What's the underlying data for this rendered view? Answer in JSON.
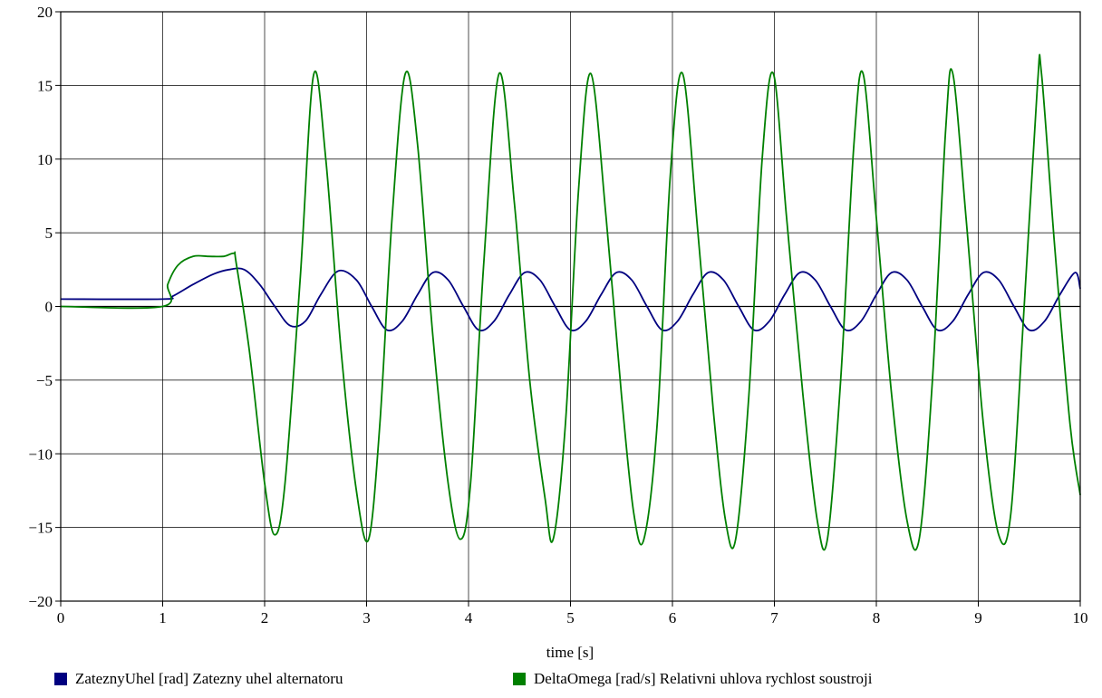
{
  "chart_data": {
    "type": "line",
    "title": "",
    "xlabel": "time [s]",
    "ylabel": "",
    "xlim": [
      0,
      10
    ],
    "ylim": [
      -20,
      20
    ],
    "xticks": [
      0,
      1,
      2,
      3,
      4,
      5,
      6,
      7,
      8,
      9,
      10
    ],
    "yticks": [
      -20,
      -15,
      -10,
      -5,
      0,
      5,
      10,
      15,
      20
    ],
    "ytick_labels": [
      "−20",
      "−15",
      "−10",
      "−5",
      "0",
      "5",
      "10",
      "15",
      "20"
    ],
    "grid": true,
    "legend_position": "bottom",
    "series": [
      {
        "name": "ZateznyUhel [rad] Zatezny uhel alternatoru",
        "color": "#000080",
        "x": [
          0,
          1.0,
          1.1,
          1.3,
          1.5,
          1.65,
          1.8,
          1.95,
          2.1,
          2.25,
          2.4,
          2.55,
          2.72,
          2.9,
          3.05,
          3.2,
          3.35,
          3.5,
          3.65,
          3.8,
          3.95,
          4.1,
          4.25,
          4.4,
          4.55,
          4.7,
          4.85,
          5.0,
          5.15,
          5.3,
          5.45,
          5.6,
          5.75,
          5.9,
          6.05,
          6.2,
          6.35,
          6.5,
          6.65,
          6.8,
          6.95,
          7.1,
          7.25,
          7.4,
          7.55,
          7.7,
          7.85,
          8.0,
          8.15,
          8.3,
          8.45,
          8.6,
          8.75,
          8.9,
          9.05,
          9.2,
          9.35,
          9.5,
          9.65,
          9.8,
          9.95,
          10.0
        ],
        "values": [
          0.5,
          0.5,
          0.7,
          1.5,
          2.2,
          2.5,
          2.5,
          1.5,
          0,
          -1.3,
          -1.0,
          0.8,
          2.4,
          1.8,
          0,
          -1.6,
          -1.0,
          0.8,
          2.3,
          1.8,
          0,
          -1.6,
          -1.0,
          0.8,
          2.3,
          1.8,
          0,
          -1.6,
          -1.0,
          0.8,
          2.3,
          1.8,
          0,
          -1.6,
          -1.0,
          0.8,
          2.3,
          1.8,
          0,
          -1.6,
          -1.0,
          0.8,
          2.3,
          1.8,
          0,
          -1.6,
          -1.0,
          0.8,
          2.3,
          1.8,
          0,
          -1.6,
          -1.0,
          0.8,
          2.3,
          1.8,
          0,
          -1.6,
          -1.0,
          0.8,
          2.3,
          1.2
        ]
      },
      {
        "name": "DeltaOmega [rad/s] Relativni uhlova rychlost soustroji",
        "color": "#008000",
        "x": [
          0,
          1.0,
          1.05,
          1.15,
          1.3,
          1.45,
          1.6,
          1.7,
          1.72,
          1.85,
          2.0,
          2.1,
          2.2,
          2.35,
          2.48,
          2.6,
          2.75,
          2.9,
          3.02,
          3.13,
          3.25,
          3.38,
          3.5,
          3.65,
          3.8,
          3.92,
          4.02,
          4.15,
          4.3,
          4.45,
          4.6,
          4.75,
          4.83,
          4.95,
          5.08,
          5.2,
          5.35,
          5.5,
          5.62,
          5.72,
          5.85,
          5.98,
          6.1,
          6.25,
          6.4,
          6.52,
          6.62,
          6.75,
          6.88,
          6.99,
          7.12,
          7.28,
          7.42,
          7.52,
          7.65,
          7.78,
          7.87,
          8.0,
          8.15,
          8.3,
          8.42,
          8.55,
          8.68,
          8.75,
          8.88,
          9.05,
          9.2,
          9.32,
          9.45,
          9.58,
          9.62,
          9.75,
          9.9,
          10.0
        ],
        "values": [
          0,
          0,
          1.5,
          2.8,
          3.4,
          3.4,
          3.4,
          3.6,
          3.0,
          -3.0,
          -12.0,
          -15.5,
          -12.0,
          2.0,
          15.7,
          10.0,
          -3.0,
          -12.5,
          -15.8,
          -8.0,
          6.0,
          15.8,
          11.0,
          -2.0,
          -12.0,
          -15.8,
          -12.0,
          3.0,
          15.8,
          7.0,
          -5.0,
          -13.0,
          -15.8,
          -8.0,
          8.0,
          15.8,
          6.0,
          -6.0,
          -14.0,
          -15.8,
          -8.0,
          9.0,
          15.8,
          5.0,
          -7.0,
          -14.5,
          -15.8,
          -6.0,
          10.0,
          15.8,
          6.0,
          -6.0,
          -14.5,
          -15.8,
          -5.0,
          11.0,
          15.8,
          6.0,
          -6.0,
          -14.5,
          -15.8,
          -5.0,
          12.0,
          15.8,
          6.0,
          -8.0,
          -15.5,
          -14.0,
          0.0,
          15.0,
          15.8,
          4.0,
          -8.0,
          -12.8
        ]
      }
    ]
  }
}
